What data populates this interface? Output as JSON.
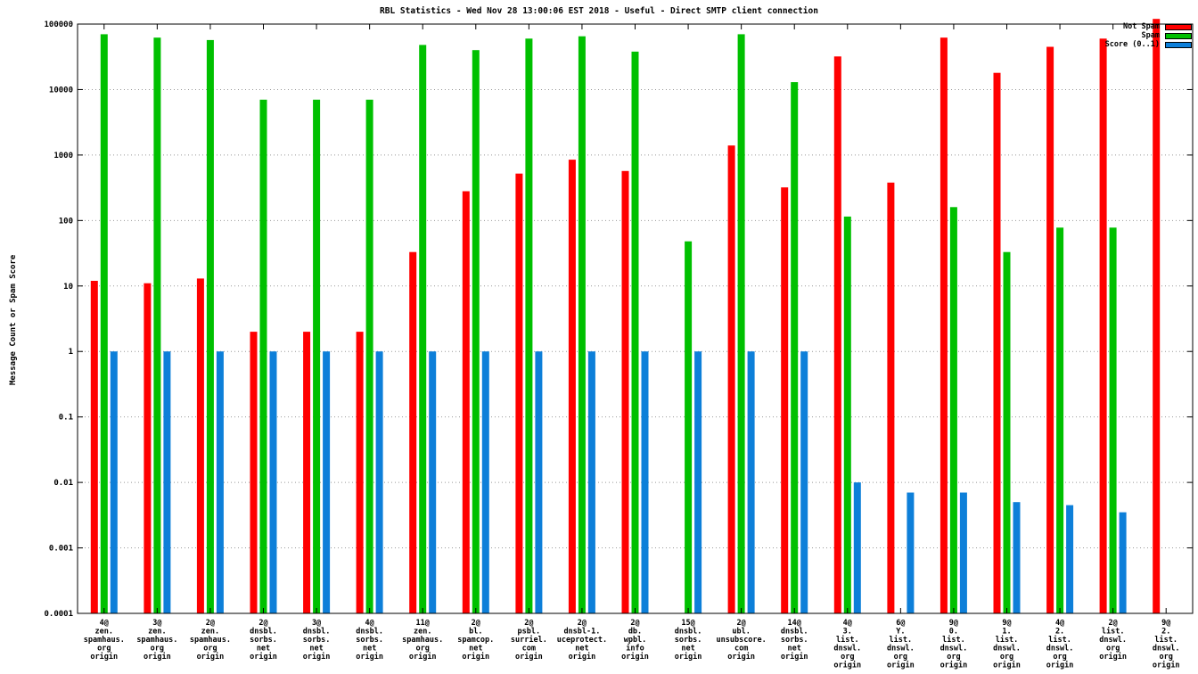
{
  "chart_data": {
    "type": "bar",
    "title": "RBL Statistics - Wed Nov 28 13:00:06 EST 2018 - Useful - Direct SMTP client connection",
    "ylabel": "Message Count or Spam Score",
    "xlabel": "",
    "y_scale": "log",
    "ylim": [
      0.0001,
      100000
    ],
    "y_ticks": [
      "100000",
      "10000",
      "1000",
      "100",
      "10",
      "1",
      "0.1",
      "0.01",
      "0.001",
      "0.0001"
    ],
    "grid": "horizontal-dotted",
    "legend_position": "top-right",
    "categories": [
      [
        "4@",
        "zen.",
        "spamhaus.",
        "org",
        "origin"
      ],
      [
        "3@",
        "zen.",
        "spamhaus.",
        "org",
        "origin"
      ],
      [
        "2@",
        "zen.",
        "spamhaus.",
        "org",
        "origin"
      ],
      [
        "2@",
        "dnsbl.",
        "sorbs.",
        "net",
        "origin"
      ],
      [
        "3@",
        "dnsbl.",
        "sorbs.",
        "net",
        "origin"
      ],
      [
        "4@",
        "dnsbl.",
        "sorbs.",
        "net",
        "origin"
      ],
      [
        "11@",
        "zen.",
        "spamhaus.",
        "org",
        "origin"
      ],
      [
        "2@",
        "bl.",
        "spamcop.",
        "net",
        "origin"
      ],
      [
        "2@",
        "psbl.",
        "surriel.",
        "com",
        "origin"
      ],
      [
        "2@",
        "dnsbl-1.",
        "uceprotect.",
        "net",
        "origin"
      ],
      [
        "2@",
        "db.",
        "wpbl.",
        "info",
        "origin"
      ],
      [
        "15@",
        "dnsbl.",
        "sorbs.",
        "net",
        "origin"
      ],
      [
        "2@",
        "ubl.",
        "unsubscore.",
        "com",
        "origin"
      ],
      [
        "14@",
        "dnsbl.",
        "sorbs.",
        "net",
        "origin"
      ],
      [
        "4@",
        "3.",
        "list.",
        "dnswl.",
        "org",
        "origin"
      ],
      [
        "6@",
        "Y.",
        "list.",
        "dnswl.",
        "org",
        "origin"
      ],
      [
        "9@",
        "0.",
        "list.",
        "dnswl.",
        "org",
        "origin"
      ],
      [
        "9@",
        "1.",
        "list.",
        "dnswl.",
        "org",
        "origin"
      ],
      [
        "4@",
        "2.",
        "list.",
        "dnswl.",
        "org",
        "origin"
      ],
      [
        "2@",
        "list.",
        "dnswl.",
        "org",
        "origin"
      ],
      [
        "9@",
        "2.",
        "list.",
        "dnswl.",
        "org",
        "origin"
      ]
    ],
    "series": [
      {
        "name": "Not Spam",
        "color": "#ff0000",
        "values": [
          12,
          11,
          13,
          2,
          2,
          2,
          33,
          280,
          520,
          850,
          570,
          null,
          1400,
          320,
          32000,
          380,
          62000,
          18000,
          45000,
          60000,
          120000
        ]
      },
      {
        "name": "Spam",
        "color": "#00c000",
        "values": [
          70000,
          62000,
          57000,
          7000,
          7000,
          7000,
          48000,
          40000,
          60000,
          65000,
          38000,
          48,
          70000,
          13000,
          115,
          null,
          160,
          33,
          78,
          78,
          null
        ]
      },
      {
        "name": "Score (0..1)",
        "color": "#0d7fd9",
        "values": [
          1,
          1,
          1,
          1,
          1,
          1,
          1,
          1,
          1,
          1,
          1,
          1,
          1,
          1,
          0.01,
          0.007,
          0.007,
          0.005,
          0.0045,
          0.0035,
          null
        ]
      }
    ]
  }
}
